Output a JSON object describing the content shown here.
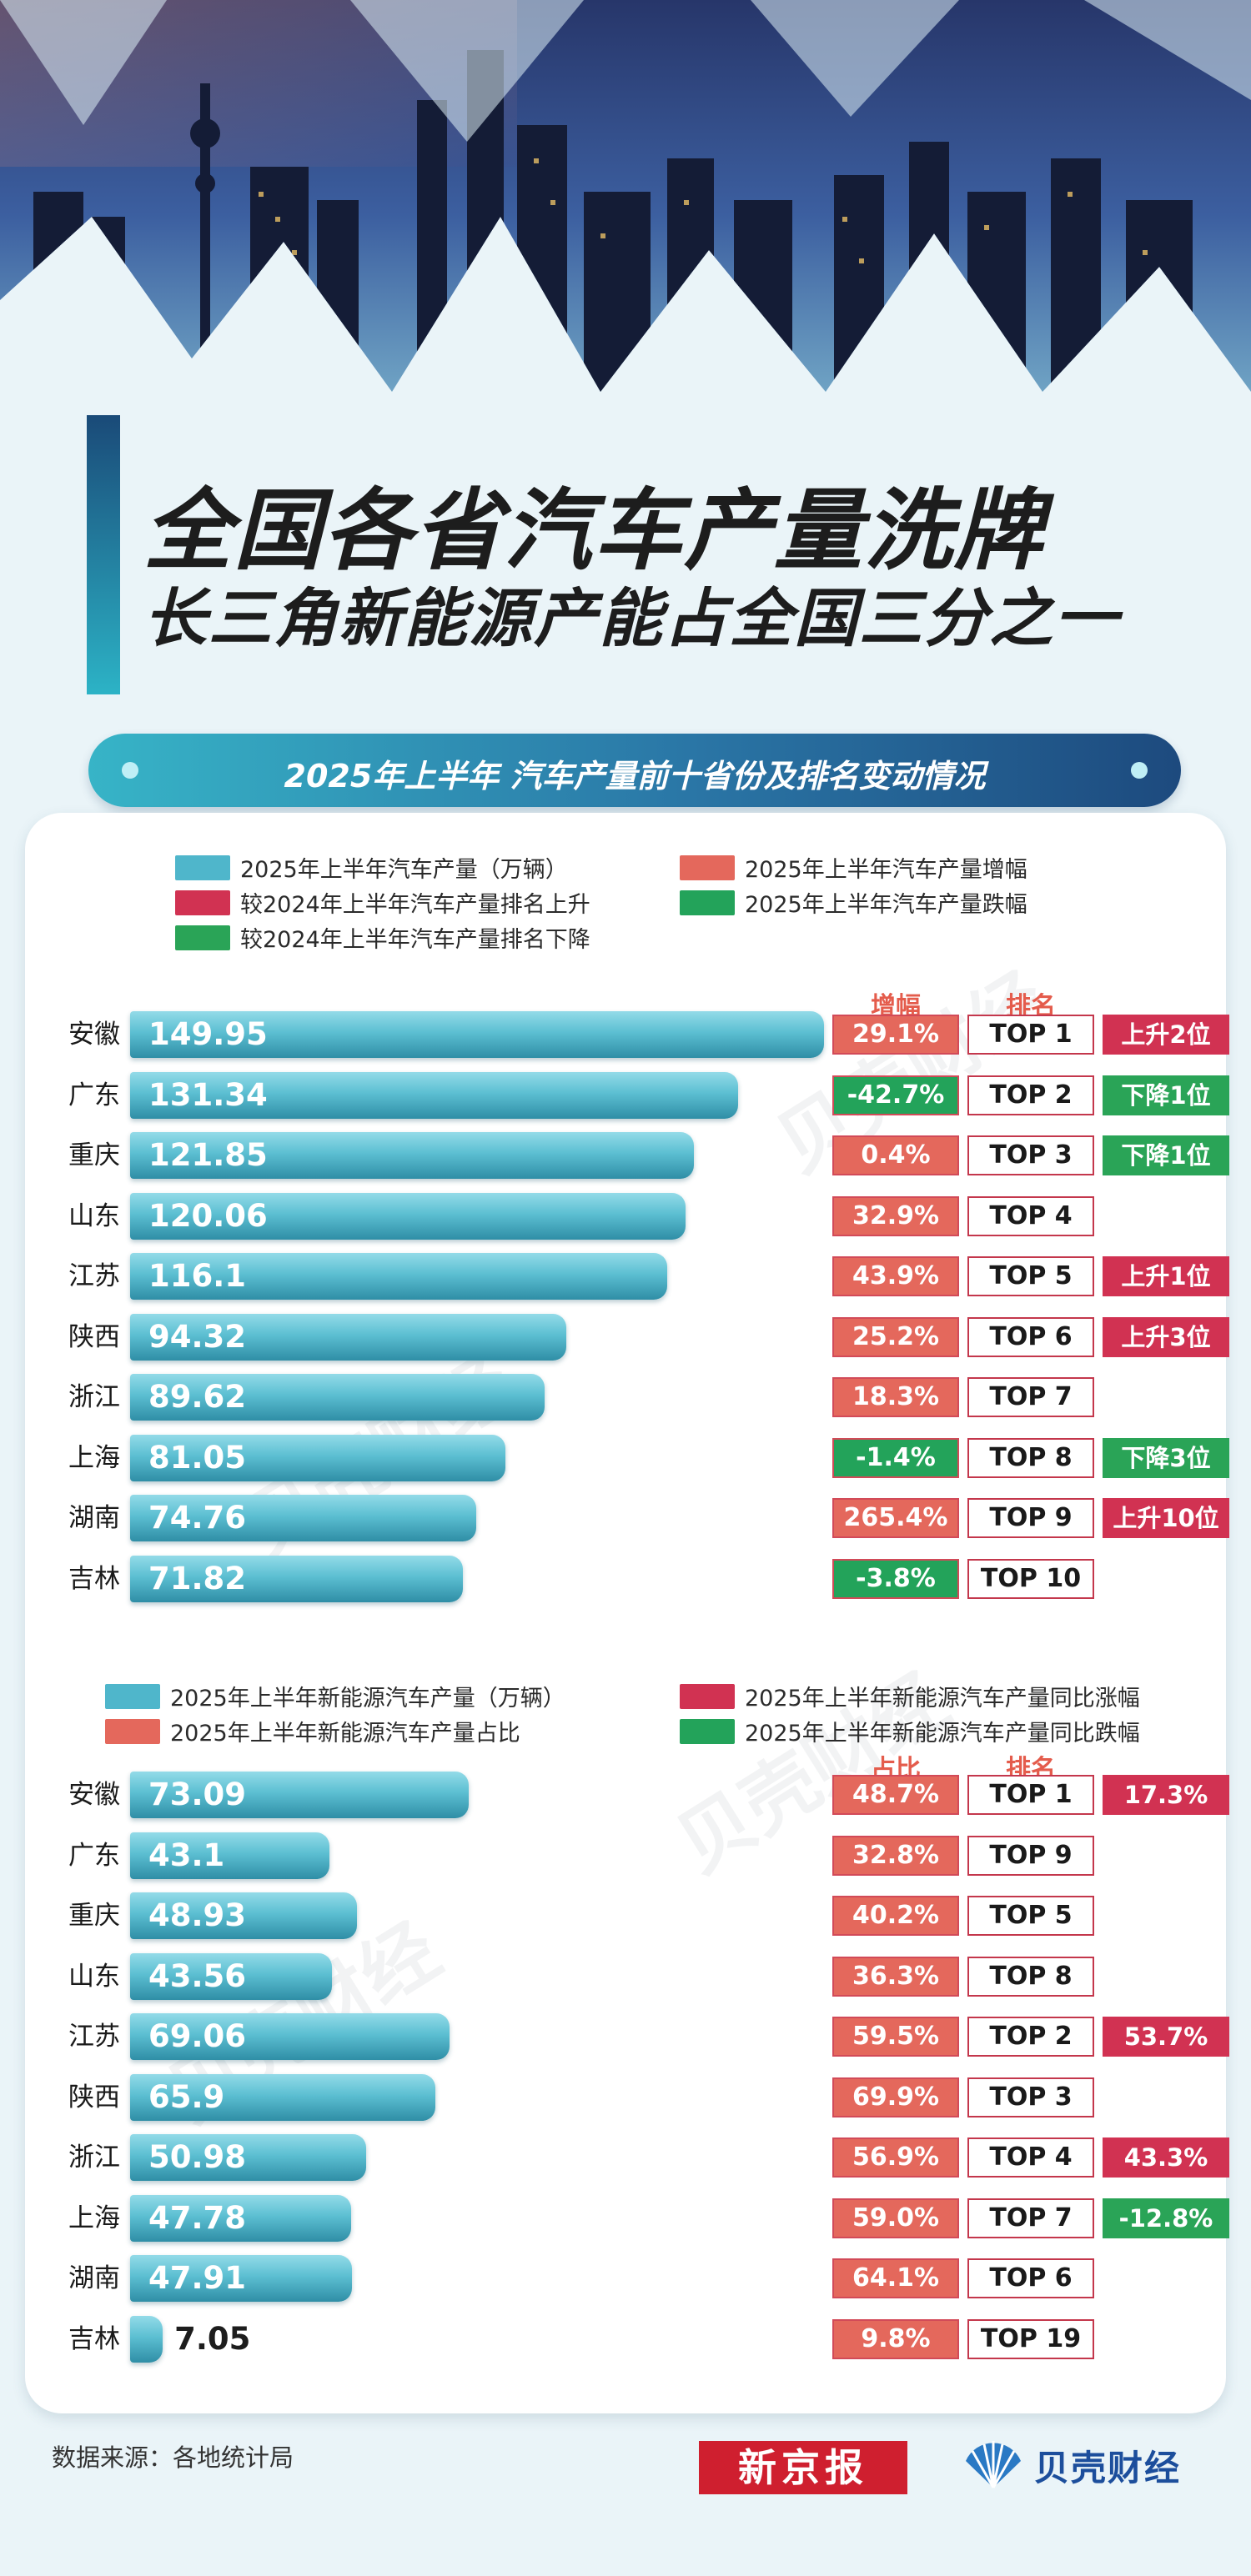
{
  "title": {
    "line1": "全国各省汽车产量洗牌",
    "line2": "长三角新能源产能占全国三分之一"
  },
  "subtitle": "2025年上半年 汽车产量前十省份及排名变动情况",
  "watermark": "贝壳财经",
  "source": "数据来源：各地统计局",
  "logos": {
    "xinjingbao": "新京报",
    "beike": "贝壳财经"
  },
  "colors": {
    "bar": "#4fb6cb",
    "increase": "#e4685c",
    "rank_up": "#d13252",
    "decrease": "#23a35a",
    "rank_down": "#2aa457",
    "nev_share": "#e4685c",
    "nev_yoy_up": "#d13252",
    "nev_yoy_down": "#23a35a"
  },
  "legend1": {
    "production": "2025年上半年汽车产量（万辆）",
    "increase": "2025年上半年汽车产量增幅",
    "rank_up": "较2024年上半年汽车产量排名上升",
    "decrease": "2025年上半年汽车产量跌幅",
    "rank_down": "较2024年上半年汽车产量排名下降"
  },
  "legend2": {
    "production": "2025年上半年新能源汽车产量（万辆）",
    "yoy_up": "2025年上半年新能源汽车产量同比涨幅",
    "share": "2025年上半年新能源汽车产量占比",
    "yoy_down": "2025年上半年新能源汽车产量同比跌幅"
  },
  "headers1": {
    "growth": "增幅",
    "rank": "排名"
  },
  "headers2": {
    "share": "占比",
    "rank": "排名"
  },
  "chart_data": [
    {
      "type": "bar",
      "orientation": "horizontal",
      "categories": [
        "安徽",
        "广东",
        "重庆",
        "山东",
        "江苏",
        "陕西",
        "浙江",
        "上海",
        "湖南",
        "吉林"
      ],
      "series": [
        {
          "name": "2025年上半年汽车产量（万辆）",
          "values": [
            149.95,
            131.34,
            121.85,
            120.06,
            116.1,
            94.32,
            89.62,
            81.05,
            74.76,
            71.82
          ]
        }
      ],
      "value_labels": [
        "149.95",
        "131.34",
        "121.85",
        "120.06",
        "116.1",
        "94.32",
        "89.62",
        "81.05",
        "74.76",
        "71.82"
      ],
      "growth": [
        "29.1%",
        "-42.7%",
        "0.4%",
        "32.9%",
        "43.9%",
        "25.2%",
        "18.3%",
        "-1.4%",
        "265.4%",
        "-3.8%"
      ],
      "growth_values": [
        29.1,
        -42.7,
        0.4,
        32.9,
        43.9,
        25.2,
        18.3,
        -1.4,
        265.4,
        -3.8
      ],
      "rank": [
        "TOP 1",
        "TOP 2",
        "TOP 3",
        "TOP 4",
        "TOP 5",
        "TOP 6",
        "TOP 7",
        "TOP 8",
        "TOP 9",
        "TOP 10"
      ],
      "rank_change": [
        "上升2位",
        "下降1位",
        "下降1位",
        "",
        "上升1位",
        "上升3位",
        "",
        "下降3位",
        "上升10位",
        ""
      ],
      "rank_change_dir": [
        "up",
        "down",
        "down",
        "",
        "up",
        "up",
        "",
        "down",
        "up",
        ""
      ]
    },
    {
      "type": "bar",
      "orientation": "horizontal",
      "categories": [
        "安徽",
        "广东",
        "重庆",
        "山东",
        "江苏",
        "陕西",
        "浙江",
        "上海",
        "湖南",
        "吉林"
      ],
      "series": [
        {
          "name": "2025年上半年新能源汽车产量（万辆）",
          "values": [
            73.09,
            43.1,
            48.93,
            43.56,
            69.06,
            65.9,
            50.98,
            47.78,
            47.91,
            7.05
          ]
        }
      ],
      "value_labels": [
        "73.09",
        "43.1",
        "48.93",
        "43.56",
        "69.06",
        "65.9",
        "50.98",
        "47.78",
        "47.91",
        "7.05"
      ],
      "share": [
        "48.7%",
        "32.8%",
        "40.2%",
        "36.3%",
        "59.5%",
        "69.9%",
        "56.9%",
        "59.0%",
        "64.1%",
        "9.8%"
      ],
      "share_values": [
        48.7,
        32.8,
        40.2,
        36.3,
        59.5,
        69.9,
        56.9,
        59.0,
        64.1,
        9.8
      ],
      "rank": [
        "TOP 1",
        "TOP 9",
        "TOP 5",
        "TOP 8",
        "TOP 2",
        "TOP 3",
        "TOP 4",
        "TOP 7",
        "TOP 6",
        "TOP 19"
      ],
      "yoy": [
        "17.3%",
        "",
        "",
        "",
        "53.7%",
        "",
        "43.3%",
        "-12.8%",
        "",
        ""
      ],
      "yoy_dir": [
        "up",
        "",
        "",
        "",
        "up",
        "",
        "up",
        "down",
        "",
        ""
      ]
    }
  ]
}
